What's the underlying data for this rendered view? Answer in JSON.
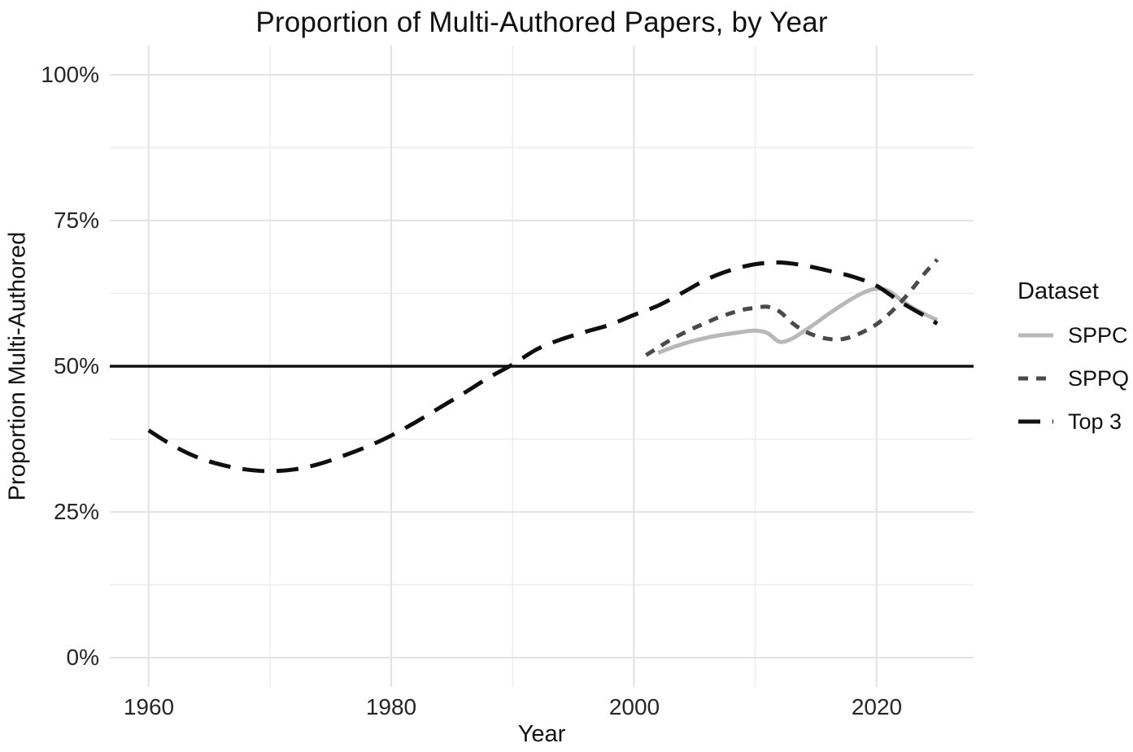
{
  "title": "Proportion of Multi-Authored Papers, by Year",
  "axes": {
    "x": {
      "label": "Year",
      "ticks": [
        "1960",
        "1980",
        "2000",
        "2020"
      ]
    },
    "y": {
      "label": "Proportion Multi-Authored",
      "ticks_top_to_bottom": [
        "100%",
        "75%",
        "50%",
        "25%",
        "0%"
      ]
    }
  },
  "legend": {
    "title": "Dataset",
    "items": [
      {
        "label": "SPPC",
        "color": "#b8b8b8",
        "dash": "solid"
      },
      {
        "label": "SPPQ",
        "color": "#4a4a4a",
        "dash": "short-dash"
      },
      {
        "label": "Top 3",
        "color": "#0f0f0f",
        "dash": "long-dash"
      }
    ]
  },
  "colors": {
    "grid_major": "#e2e2e2",
    "grid_minor": "#ececec",
    "reference_line": "#111111",
    "background": "#ffffff"
  },
  "chart_data": {
    "type": "line",
    "title": "Proportion of Multi-Authored Papers, by Year",
    "xlabel": "Year",
    "ylabel": "Proportion Multi-Authored",
    "x_domain": [
      1956.8,
      2028.0
    ],
    "y_domain_percent": [
      -5,
      105
    ],
    "x_major_gridlines_years": [
      1960,
      1980,
      2000,
      2020
    ],
    "x_minor_gridlines_years": [
      1970,
      1990,
      2010
    ],
    "y_major_gridlines_percent": [
      0,
      25,
      50,
      75,
      100
    ],
    "y_minor_gridlines_percent": [
      12.5,
      37.5,
      62.5,
      87.5
    ],
    "hline_percent": 50,
    "legend_position": "right",
    "grid": "on",
    "series": [
      {
        "name": "SPPC",
        "color": "#b8b8b8",
        "dash": "solid",
        "points": [
          [
            2002,
            52.3
          ],
          [
            2003,
            53.1
          ],
          [
            2004,
            53.8
          ],
          [
            2005,
            54.4
          ],
          [
            2006,
            54.9
          ],
          [
            2007,
            55.3
          ],
          [
            2008,
            55.6
          ],
          [
            2009,
            55.9
          ],
          [
            2010,
            56.1
          ],
          [
            2011,
            55.7
          ],
          [
            2012,
            54.2
          ],
          [
            2013,
            54.7
          ],
          [
            2014,
            56.0
          ],
          [
            2015,
            57.4
          ],
          [
            2016,
            58.9
          ],
          [
            2017,
            60.3
          ],
          [
            2018,
            61.6
          ],
          [
            2019,
            62.7
          ],
          [
            2020,
            63.3
          ],
          [
            2021,
            62.9
          ],
          [
            2022,
            61.4
          ],
          [
            2023,
            60.0
          ],
          [
            2024,
            58.9
          ],
          [
            2025,
            57.9
          ]
        ]
      },
      {
        "name": "SPPQ",
        "color": "#4a4a4a",
        "dash": "short-dash",
        "points": [
          [
            2001,
            51.9
          ],
          [
            2002,
            53.2
          ],
          [
            2003,
            54.5
          ],
          [
            2004,
            55.6
          ],
          [
            2005,
            56.6
          ],
          [
            2006,
            57.5
          ],
          [
            2007,
            58.4
          ],
          [
            2008,
            59.1
          ],
          [
            2009,
            59.7
          ],
          [
            2010,
            60.0
          ],
          [
            2011,
            60.2
          ],
          [
            2012,
            59.4
          ],
          [
            2013,
            57.5
          ],
          [
            2014,
            56.1
          ],
          [
            2015,
            55.2
          ],
          [
            2016,
            54.7
          ],
          [
            2017,
            54.6
          ],
          [
            2018,
            55.1
          ],
          [
            2019,
            56.0
          ],
          [
            2020,
            57.2
          ],
          [
            2021,
            58.9
          ],
          [
            2022,
            61.0
          ],
          [
            2023,
            63.4
          ],
          [
            2024,
            66.0
          ],
          [
            2025,
            68.3
          ]
        ]
      },
      {
        "name": "Top 3",
        "color": "#0f0f0f",
        "dash": "long-dash",
        "points": [
          [
            1960,
            39.0
          ],
          [
            1962,
            36.4
          ],
          [
            1964,
            34.4
          ],
          [
            1966,
            33.1
          ],
          [
            1968,
            32.3
          ],
          [
            1970,
            32.0
          ],
          [
            1972,
            32.3
          ],
          [
            1974,
            33.2
          ],
          [
            1976,
            34.6
          ],
          [
            1978,
            36.2
          ],
          [
            1980,
            38.1
          ],
          [
            1982,
            40.4
          ],
          [
            1984,
            42.9
          ],
          [
            1986,
            45.4
          ],
          [
            1988,
            48.0
          ],
          [
            1990,
            50.3
          ],
          [
            1992,
            52.9
          ],
          [
            1994,
            54.6
          ],
          [
            1996,
            55.9
          ],
          [
            1998,
            57.1
          ],
          [
            2000,
            58.8
          ],
          [
            2002,
            60.4
          ],
          [
            2004,
            62.6
          ],
          [
            2006,
            64.9
          ],
          [
            2008,
            66.5
          ],
          [
            2010,
            67.5
          ],
          [
            2012,
            67.8
          ],
          [
            2014,
            67.3
          ],
          [
            2016,
            66.4
          ],
          [
            2018,
            65.4
          ],
          [
            2020,
            63.8
          ],
          [
            2022,
            61.0
          ],
          [
            2024,
            58.6
          ],
          [
            2025,
            57.3
          ]
        ]
      }
    ]
  }
}
